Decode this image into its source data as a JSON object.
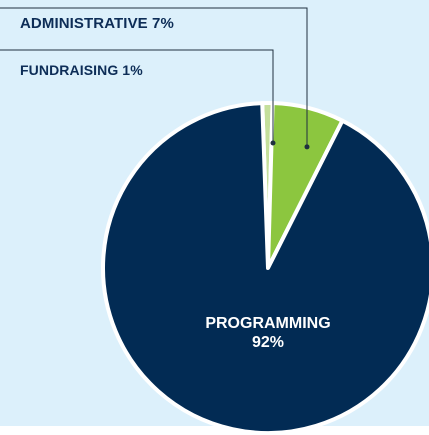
{
  "chart_data": {
    "type": "pie",
    "slices": [
      {
        "label": "PROGRAMMING",
        "value": 92,
        "display": "92%",
        "color": "#022b54"
      },
      {
        "label": "FUNDRAISING",
        "value": 1,
        "display": "1%",
        "color": "#c4df9b"
      },
      {
        "label": "ADMINISTRATIVE",
        "value": 7,
        "display": "7%",
        "color": "#8cc63f"
      }
    ],
    "annotations": {
      "administrative": "ADMINISTRATIVE 7%",
      "fundraising": "FUNDRAISING 1%",
      "programming_name": "PROGRAMMING",
      "programming_value": "92%"
    },
    "colors": {
      "background": "#dcf0fb",
      "slice_border": "#ffffff",
      "leader_line": "#1f2f3f",
      "label_text": "#0d2d57"
    }
  }
}
